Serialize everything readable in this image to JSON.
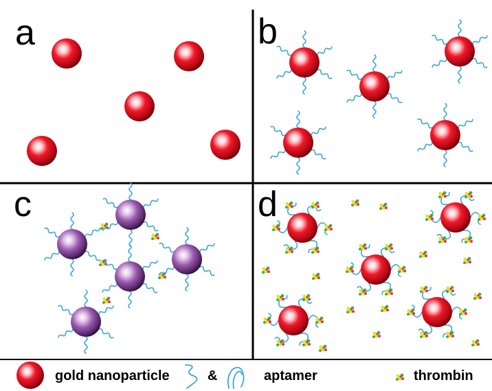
{
  "panels": {
    "a": {
      "label": "a",
      "particles": 5,
      "state": "gold nanoparticles"
    },
    "b": {
      "label": "b",
      "particles": 5,
      "state": "gold nanoparticle + aptamer"
    },
    "c": {
      "label": "c",
      "particles": 5,
      "state": "aggregated (purple)"
    },
    "d": {
      "label": "d",
      "particles": 5,
      "state": "gold nanoparticle + aptamer + thrombin"
    }
  },
  "legend": {
    "gold_label": "gold nanoparticle",
    "amp": "&",
    "aptamer_label": "aptamer",
    "thrombin_label": "thrombin"
  },
  "colors": {
    "gold_particle": "#e8101a",
    "aggregated_particle": "#8a4a9e",
    "aptamer": "#3aa6d8",
    "thrombin_yellow": "#e8e02a",
    "thrombin_green": "#3ab04a",
    "thrombin_red": "#e03050"
  },
  "icons": [
    "gold-nanoparticle-icon",
    "aptamer-icon",
    "thrombin-icon"
  ]
}
